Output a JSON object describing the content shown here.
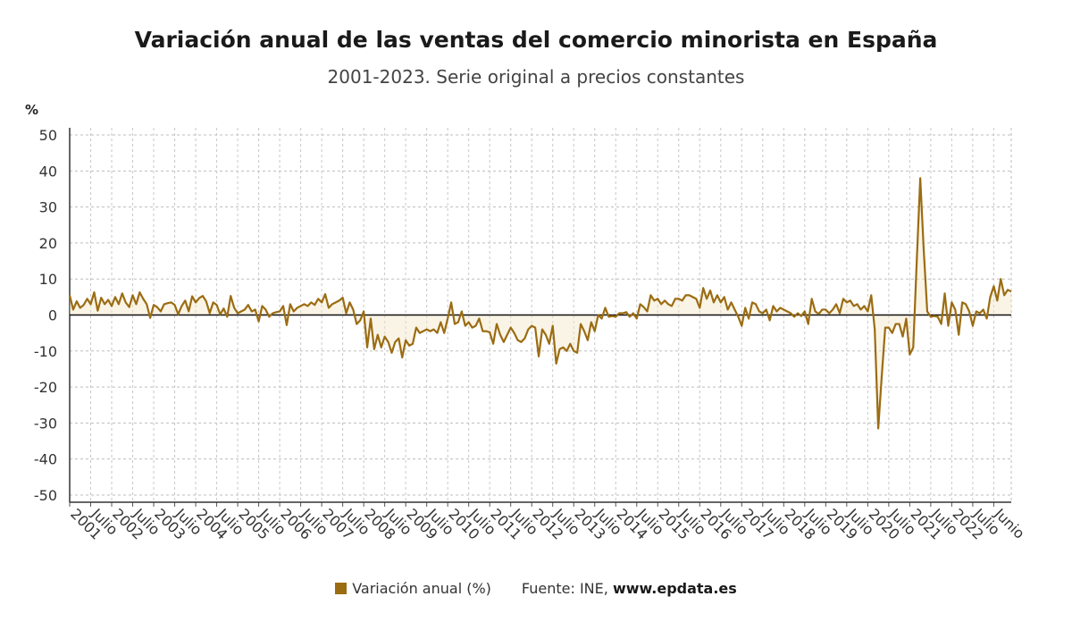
{
  "chart_data": {
    "type": "line",
    "title": "Variación anual de las ventas del comercio minorista en España",
    "subtitle": "2001-2023. Serie original a precios constantes",
    "ylabel": "%",
    "ylim": [
      -52,
      52
    ],
    "yticks": [
      50,
      40,
      30,
      20,
      10,
      0,
      -10,
      -20,
      -30,
      -40,
      -50
    ],
    "x_start": "2001-01",
    "x_end": "2023-06",
    "x_tick_labels": [
      "2001",
      "Julio",
      "2002",
      "Julio",
      "2003",
      "Julio",
      "2004",
      "Julio",
      "2005",
      "Julio",
      "2006",
      "Julio",
      "2007",
      "Julio",
      "2008",
      "Julio",
      "2009",
      "Julio",
      "2010",
      "Julio",
      "2011",
      "Julio",
      "2012",
      "Julio",
      "2013",
      "Julio",
      "2014",
      "Julio",
      "2015",
      "Julio",
      "2016",
      "Julio",
      "2017",
      "Julio",
      "2018",
      "Julio",
      "2019",
      "Julio",
      "2020",
      "Julio",
      "2021",
      "Julio",
      "2022",
      "Julio",
      "Junio"
    ],
    "grid": true,
    "legend_position": "bottom",
    "series": [
      {
        "name": "Variación anual (%)",
        "color": "#9b6c12",
        "values": [
          5.5,
          1.5,
          3.8,
          2.0,
          2.8,
          4.5,
          3.0,
          6.3,
          1.2,
          4.8,
          3.0,
          4.2,
          2.5,
          5.0,
          3.0,
          6.0,
          3.5,
          2.2,
          5.5,
          3.0,
          6.3,
          4.5,
          3.0,
          -0.8,
          2.8,
          2.2,
          1.0,
          3.0,
          3.3,
          3.5,
          2.8,
          0.2,
          2.5,
          4.0,
          1.0,
          5.2,
          3.5,
          4.7,
          5.3,
          3.8,
          0.5,
          3.5,
          2.8,
          0.2,
          1.8,
          -0.5,
          5.3,
          2.0,
          0.5,
          1.0,
          1.5,
          2.8,
          1.0,
          1.5,
          -1.8,
          2.5,
          1.5,
          -0.5,
          0.5,
          0.8,
          1.0,
          2.5,
          -2.8,
          3.0,
          1.0,
          2.0,
          2.5,
          3.0,
          2.5,
          3.5,
          2.8,
          4.5,
          3.5,
          5.8,
          2.0,
          3.0,
          3.5,
          4.0,
          4.8,
          0.5,
          3.5,
          1.5,
          -2.5,
          -1.5,
          1.0,
          -9.0,
          -1.0,
          -9.5,
          -5.5,
          -9.0,
          -6.0,
          -7.5,
          -10.5,
          -7.5,
          -6.5,
          -11.8,
          -7.0,
          -8.5,
          -8.0,
          -3.5,
          -5.0,
          -4.5,
          -4.0,
          -4.5,
          -4.0,
          -5.0,
          -2.0,
          -5.0,
          -1.0,
          3.5,
          -2.5,
          -2.0,
          1.0,
          -3.0,
          -2.0,
          -3.5,
          -3.0,
          -1.0,
          -4.5,
          -4.5,
          -4.8,
          -8.0,
          -2.5,
          -5.5,
          -7.5,
          -5.5,
          -3.5,
          -5.0,
          -7.0,
          -7.5,
          -6.5,
          -4.0,
          -3.0,
          -3.5,
          -11.5,
          -4.0,
          -5.5,
          -8.0,
          -3.0,
          -13.5,
          -9.5,
          -9.0,
          -10.0,
          -8.0,
          -10.0,
          -10.5,
          -2.5,
          -4.5,
          -7.0,
          -2.0,
          -4.5,
          0.0,
          -1.0,
          2.0,
          -0.5,
          -0.3,
          -0.5,
          0.5,
          0.5,
          0.8,
          -0.5,
          0.5,
          -1.0,
          3.0,
          2.2,
          1.0,
          5.5,
          4.0,
          4.5,
          3.0,
          4.0,
          3.0,
          2.5,
          4.5,
          4.5,
          4.0,
          5.5,
          5.5,
          5.0,
          4.5,
          2.0,
          7.5,
          4.5,
          6.8,
          3.5,
          5.5,
          3.5,
          5.0,
          1.5,
          3.5,
          1.5,
          -0.5,
          -3.0,
          2.0,
          -1.0,
          3.5,
          3.0,
          1.0,
          0.5,
          1.5,
          -1.5,
          2.5,
          1.0,
          2.0,
          1.5,
          1.0,
          0.5,
          -0.5,
          0.5,
          -0.3,
          1.0,
          -2.5,
          4.5,
          1.0,
          0.3,
          1.5,
          1.5,
          0.5,
          1.5,
          3.0,
          0.5,
          4.5,
          3.5,
          4.0,
          2.5,
          3.0,
          1.5,
          2.5,
          1.0,
          5.5,
          -4.0,
          -31.5,
          -17.0,
          -3.5,
          -3.5,
          -5.0,
          -2.5,
          -2.5,
          -6.0,
          -1.0,
          -11.0,
          -9.0,
          15.0,
          38.0,
          18.0,
          1.0,
          -0.5,
          -0.3,
          -0.5,
          -2.5,
          6.0,
          -3.0,
          3.5,
          1.5,
          -5.5,
          3.5,
          3.0,
          1.0,
          -3.0,
          1.0,
          0.5,
          1.5,
          -1.0,
          5.0,
          8.0,
          4.0,
          10.0,
          5.5,
          7.0,
          6.5
        ]
      }
    ]
  },
  "legend": {
    "series_label": "Variación anual (%)",
    "source_prefix": "Fuente: INE,",
    "source_site": "www.epdata.es"
  }
}
